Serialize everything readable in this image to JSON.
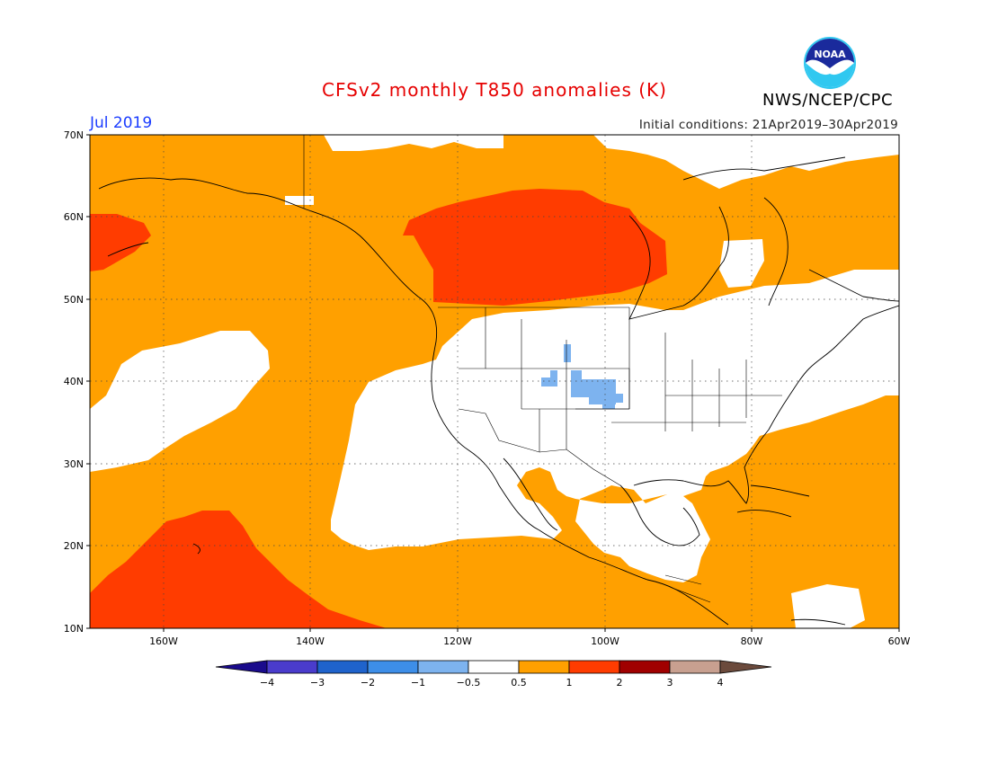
{
  "header": {
    "title": "CFSv2 monthly T850 anomalies (K)",
    "valid_month": "Jul 2019",
    "initial_conditions": "Initial conditions: 21Apr2019–30Apr2019",
    "agency": "NWS/NCEP/CPC",
    "logo_text": "NOAA"
  },
  "map": {
    "region_lon": [
      -170,
      -60
    ],
    "region_lat": [
      10,
      70
    ],
    "lat_labels": [
      "70N",
      "60N",
      "50N",
      "40N",
      "30N",
      "20N",
      "10N"
    ],
    "lon_labels": [
      "160W",
      "140W",
      "120W",
      "100W",
      "80W",
      "60W"
    ],
    "gridlines": "dotted"
  },
  "colorbar": {
    "labels": [
      "−4",
      "−3",
      "−2",
      "−1",
      "−0.5",
      "0.5",
      "1",
      "2",
      "3",
      "4"
    ],
    "colors": [
      "#1a0b8c",
      "#4a3ccc",
      "#1f63cc",
      "#3d8ee8",
      "#7db3ef",
      "#ffffff",
      "#ffa000",
      "#ff3c00",
      "#a00000",
      "#c8a090",
      "#6b4a3c"
    ]
  }
}
